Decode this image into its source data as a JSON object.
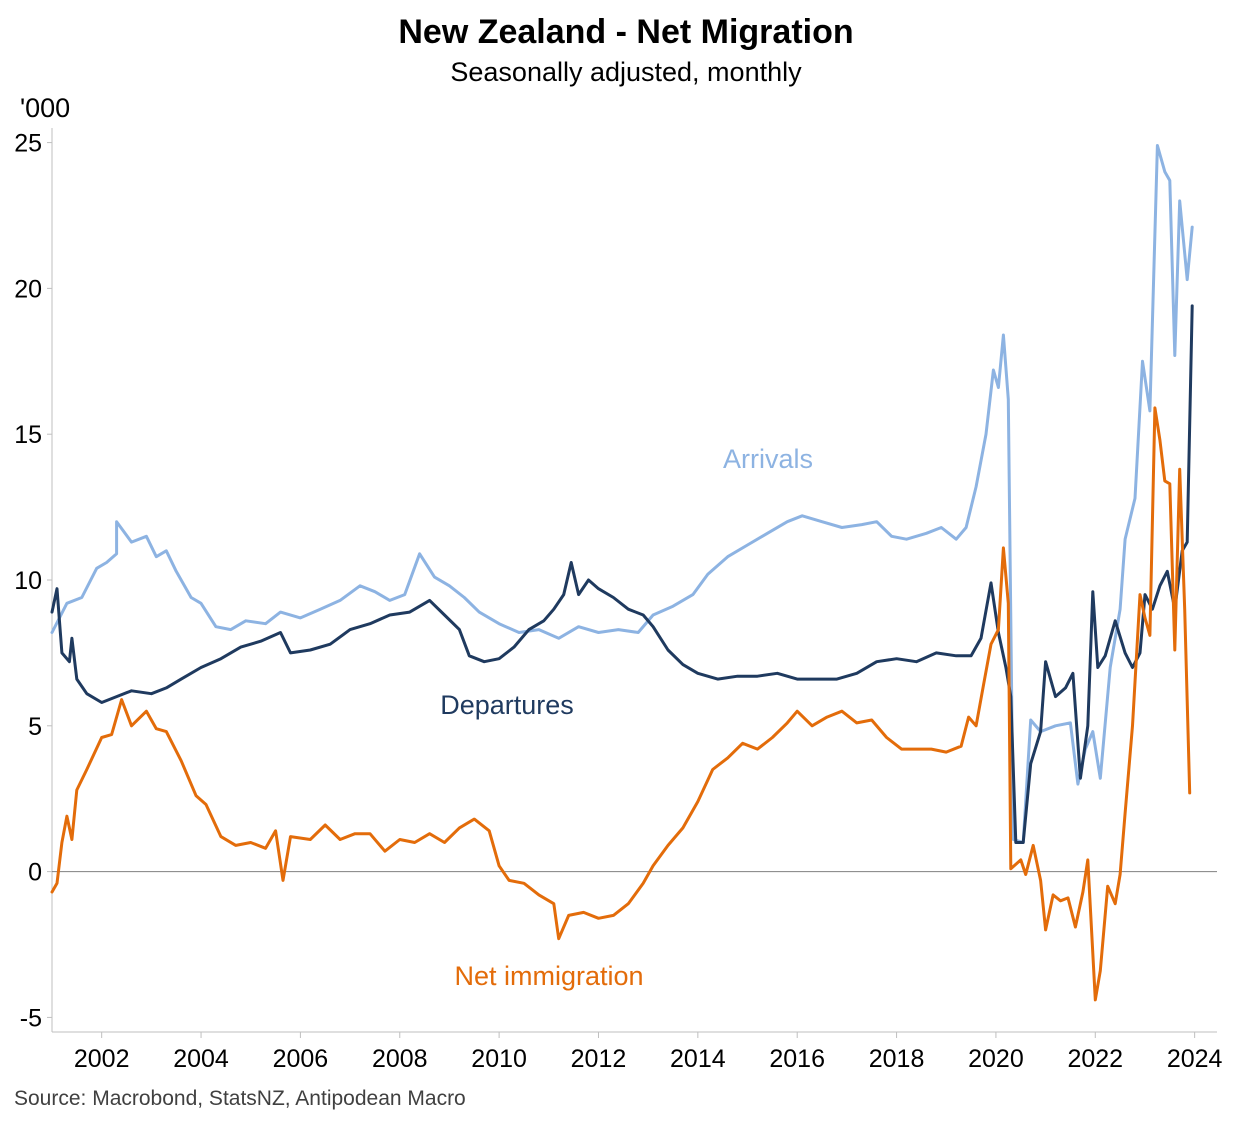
{
  "chart_data": {
    "type": "line",
    "title": "New Zealand - Net Migration",
    "subtitle": "Seasonally adjusted, monthly",
    "ylabel": "'000",
    "xlabel": "",
    "source": "Source: Macrobond, StatsNZ, Antipodean Macro",
    "ylim": [
      -5.5,
      25.5
    ],
    "xlim": [
      2001.0,
      2024.45
    ],
    "y_ticks": [
      "25",
      "20",
      "15",
      "10",
      "5",
      "0",
      "-5"
    ],
    "y_tick_values": [
      25,
      20,
      15,
      10,
      5,
      0,
      -5
    ],
    "x_ticks": [
      "2002",
      "2004",
      "2006",
      "2008",
      "2010",
      "2012",
      "2014",
      "2016",
      "2018",
      "2020",
      "2022",
      "2024"
    ],
    "x_tick_values": [
      2002,
      2004,
      2006,
      2008,
      2010,
      2012,
      2014,
      2016,
      2018,
      2020,
      2022,
      2024
    ],
    "zero_line": true,
    "colors": {
      "arrivals": "#8db3e2",
      "departures": "#1f3a5f",
      "net": "#e36c0a",
      "zero": "#808080",
      "axis": "#bfbfbf"
    },
    "series": [
      {
        "name": "Arrivals",
        "label": "Arrivals",
        "color": "#8db3e2",
        "points": [
          [
            2001.0,
            8.2
          ],
          [
            2001.3,
            9.2
          ],
          [
            2001.6,
            9.4
          ],
          [
            2001.9,
            10.4
          ],
          [
            2002.1,
            10.6
          ],
          [
            2002.3,
            10.9
          ],
          [
            2002.3,
            12.0
          ],
          [
            2002.6,
            11.3
          ],
          [
            2002.9,
            11.5
          ],
          [
            2003.1,
            10.8
          ],
          [
            2003.3,
            11.0
          ],
          [
            2003.5,
            10.3
          ],
          [
            2003.8,
            9.4
          ],
          [
            2004.0,
            9.2
          ],
          [
            2004.3,
            8.4
          ],
          [
            2004.6,
            8.3
          ],
          [
            2004.9,
            8.6
          ],
          [
            2005.3,
            8.5
          ],
          [
            2005.6,
            8.9
          ],
          [
            2006.0,
            8.7
          ],
          [
            2006.4,
            9.0
          ],
          [
            2006.8,
            9.3
          ],
          [
            2007.2,
            9.8
          ],
          [
            2007.5,
            9.6
          ],
          [
            2007.8,
            9.3
          ],
          [
            2008.1,
            9.5
          ],
          [
            2008.4,
            10.9
          ],
          [
            2008.7,
            10.1
          ],
          [
            2009.0,
            9.8
          ],
          [
            2009.3,
            9.4
          ],
          [
            2009.6,
            8.9
          ],
          [
            2010.0,
            8.5
          ],
          [
            2010.4,
            8.2
          ],
          [
            2010.8,
            8.3
          ],
          [
            2011.2,
            8.0
          ],
          [
            2011.6,
            8.4
          ],
          [
            2012.0,
            8.2
          ],
          [
            2012.4,
            8.3
          ],
          [
            2012.8,
            8.2
          ],
          [
            2013.1,
            8.8
          ],
          [
            2013.5,
            9.1
          ],
          [
            2013.9,
            9.5
          ],
          [
            2014.2,
            10.2
          ],
          [
            2014.6,
            10.8
          ],
          [
            2015.0,
            11.2
          ],
          [
            2015.4,
            11.6
          ],
          [
            2015.8,
            12.0
          ],
          [
            2016.1,
            12.2
          ],
          [
            2016.5,
            12.0
          ],
          [
            2016.9,
            11.8
          ],
          [
            2017.3,
            11.9
          ],
          [
            2017.6,
            12.0
          ],
          [
            2017.9,
            11.5
          ],
          [
            2018.2,
            11.4
          ],
          [
            2018.6,
            11.6
          ],
          [
            2018.9,
            11.8
          ],
          [
            2019.2,
            11.4
          ],
          [
            2019.4,
            11.8
          ],
          [
            2019.6,
            13.2
          ],
          [
            2019.8,
            15.0
          ],
          [
            2019.95,
            17.2
          ],
          [
            2020.05,
            16.6
          ],
          [
            2020.15,
            18.4
          ],
          [
            2020.25,
            16.2
          ],
          [
            2020.35,
            1.1
          ],
          [
            2020.55,
            1.0
          ],
          [
            2020.7,
            5.2
          ],
          [
            2020.9,
            4.8
          ],
          [
            2021.2,
            5.0
          ],
          [
            2021.5,
            5.1
          ],
          [
            2021.65,
            3.0
          ],
          [
            2021.8,
            4.2
          ],
          [
            2021.95,
            4.8
          ],
          [
            2022.1,
            3.2
          ],
          [
            2022.3,
            7.0
          ],
          [
            2022.5,
            9.0
          ],
          [
            2022.6,
            11.4
          ],
          [
            2022.8,
            12.8
          ],
          [
            2022.95,
            17.5
          ],
          [
            2023.1,
            15.8
          ],
          [
            2023.25,
            24.9
          ],
          [
            2023.4,
            24.0
          ],
          [
            2023.5,
            23.7
          ],
          [
            2023.6,
            17.7
          ],
          [
            2023.7,
            23.0
          ],
          [
            2023.85,
            20.3
          ],
          [
            2023.95,
            22.1
          ]
        ]
      },
      {
        "name": "Departures",
        "label": "Departures",
        "color": "#1f3a5f",
        "points": [
          [
            2001.0,
            8.9
          ],
          [
            2001.1,
            9.7
          ],
          [
            2001.2,
            7.5
          ],
          [
            2001.35,
            7.2
          ],
          [
            2001.4,
            8.0
          ],
          [
            2001.5,
            6.6
          ],
          [
            2001.7,
            6.1
          ],
          [
            2002.0,
            5.8
          ],
          [
            2002.3,
            6.0
          ],
          [
            2002.6,
            6.2
          ],
          [
            2003.0,
            6.1
          ],
          [
            2003.3,
            6.3
          ],
          [
            2003.6,
            6.6
          ],
          [
            2004.0,
            7.0
          ],
          [
            2004.4,
            7.3
          ],
          [
            2004.8,
            7.7
          ],
          [
            2005.2,
            7.9
          ],
          [
            2005.6,
            8.2
          ],
          [
            2005.8,
            7.5
          ],
          [
            2006.2,
            7.6
          ],
          [
            2006.6,
            7.8
          ],
          [
            2007.0,
            8.3
          ],
          [
            2007.4,
            8.5
          ],
          [
            2007.8,
            8.8
          ],
          [
            2008.2,
            8.9
          ],
          [
            2008.6,
            9.3
          ],
          [
            2008.9,
            8.8
          ],
          [
            2009.2,
            8.3
          ],
          [
            2009.4,
            7.4
          ],
          [
            2009.7,
            7.2
          ],
          [
            2010.0,
            7.3
          ],
          [
            2010.3,
            7.7
          ],
          [
            2010.6,
            8.3
          ],
          [
            2010.9,
            8.6
          ],
          [
            2011.1,
            9.0
          ],
          [
            2011.3,
            9.5
          ],
          [
            2011.45,
            10.6
          ],
          [
            2011.6,
            9.5
          ],
          [
            2011.8,
            10.0
          ],
          [
            2012.0,
            9.7
          ],
          [
            2012.3,
            9.4
          ],
          [
            2012.6,
            9.0
          ],
          [
            2012.9,
            8.8
          ],
          [
            2013.1,
            8.4
          ],
          [
            2013.4,
            7.6
          ],
          [
            2013.7,
            7.1
          ],
          [
            2014.0,
            6.8
          ],
          [
            2014.4,
            6.6
          ],
          [
            2014.8,
            6.7
          ],
          [
            2015.2,
            6.7
          ],
          [
            2015.6,
            6.8
          ],
          [
            2016.0,
            6.6
          ],
          [
            2016.4,
            6.6
          ],
          [
            2016.8,
            6.6
          ],
          [
            2017.2,
            6.8
          ],
          [
            2017.6,
            7.2
          ],
          [
            2018.0,
            7.3
          ],
          [
            2018.4,
            7.2
          ],
          [
            2018.8,
            7.5
          ],
          [
            2019.2,
            7.4
          ],
          [
            2019.5,
            7.4
          ],
          [
            2019.7,
            8.0
          ],
          [
            2019.9,
            9.9
          ],
          [
            2020.05,
            8.2
          ],
          [
            2020.2,
            7.0
          ],
          [
            2020.3,
            6.0
          ],
          [
            2020.4,
            1.0
          ],
          [
            2020.55,
            1.0
          ],
          [
            2020.7,
            3.7
          ],
          [
            2020.9,
            4.8
          ],
          [
            2021.0,
            7.2
          ],
          [
            2021.2,
            6.0
          ],
          [
            2021.4,
            6.3
          ],
          [
            2021.55,
            6.8
          ],
          [
            2021.7,
            3.2
          ],
          [
            2021.85,
            5.0
          ],
          [
            2021.95,
            9.6
          ],
          [
            2022.05,
            7.0
          ],
          [
            2022.2,
            7.4
          ],
          [
            2022.4,
            8.6
          ],
          [
            2022.6,
            7.5
          ],
          [
            2022.75,
            7.0
          ],
          [
            2022.9,
            7.5
          ],
          [
            2023.0,
            9.5
          ],
          [
            2023.15,
            9.0
          ],
          [
            2023.3,
            9.8
          ],
          [
            2023.45,
            10.3
          ],
          [
            2023.6,
            9.0
          ],
          [
            2023.75,
            11.0
          ],
          [
            2023.85,
            11.3
          ],
          [
            2023.95,
            19.4
          ]
        ]
      },
      {
        "name": "Net immigration",
        "label": "Net immigration",
        "color": "#e36c0a",
        "points": [
          [
            2001.0,
            -0.7
          ],
          [
            2001.1,
            -0.4
          ],
          [
            2001.2,
            1.0
          ],
          [
            2001.3,
            1.9
          ],
          [
            2001.4,
            1.1
          ],
          [
            2001.5,
            2.8
          ],
          [
            2001.7,
            3.5
          ],
          [
            2002.0,
            4.6
          ],
          [
            2002.2,
            4.7
          ],
          [
            2002.4,
            5.9
          ],
          [
            2002.6,
            5.0
          ],
          [
            2002.9,
            5.5
          ],
          [
            2003.1,
            4.9
          ],
          [
            2003.3,
            4.8
          ],
          [
            2003.6,
            3.8
          ],
          [
            2003.9,
            2.6
          ],
          [
            2004.1,
            2.3
          ],
          [
            2004.4,
            1.2
          ],
          [
            2004.7,
            0.9
          ],
          [
            2005.0,
            1.0
          ],
          [
            2005.3,
            0.8
          ],
          [
            2005.5,
            1.4
          ],
          [
            2005.65,
            -0.3
          ],
          [
            2005.8,
            1.2
          ],
          [
            2006.2,
            1.1
          ],
          [
            2006.5,
            1.6
          ],
          [
            2006.8,
            1.1
          ],
          [
            2007.1,
            1.3
          ],
          [
            2007.4,
            1.3
          ],
          [
            2007.7,
            0.7
          ],
          [
            2008.0,
            1.1
          ],
          [
            2008.3,
            1.0
          ],
          [
            2008.6,
            1.3
          ],
          [
            2008.9,
            1.0
          ],
          [
            2009.2,
            1.5
          ],
          [
            2009.5,
            1.8
          ],
          [
            2009.8,
            1.4
          ],
          [
            2010.0,
            0.2
          ],
          [
            2010.2,
            -0.3
          ],
          [
            2010.5,
            -0.4
          ],
          [
            2010.8,
            -0.8
          ],
          [
            2011.1,
            -1.1
          ],
          [
            2011.2,
            -2.3
          ],
          [
            2011.4,
            -1.5
          ],
          [
            2011.7,
            -1.4
          ],
          [
            2012.0,
            -1.6
          ],
          [
            2012.3,
            -1.5
          ],
          [
            2012.6,
            -1.1
          ],
          [
            2012.9,
            -0.4
          ],
          [
            2013.1,
            0.2
          ],
          [
            2013.4,
            0.9
          ],
          [
            2013.7,
            1.5
          ],
          [
            2014.0,
            2.4
          ],
          [
            2014.3,
            3.5
          ],
          [
            2014.6,
            3.9
          ],
          [
            2014.9,
            4.4
          ],
          [
            2015.2,
            4.2
          ],
          [
            2015.5,
            4.6
          ],
          [
            2015.8,
            5.1
          ],
          [
            2016.0,
            5.5
          ],
          [
            2016.3,
            5.0
          ],
          [
            2016.6,
            5.3
          ],
          [
            2016.9,
            5.5
          ],
          [
            2017.2,
            5.1
          ],
          [
            2017.5,
            5.2
          ],
          [
            2017.8,
            4.6
          ],
          [
            2018.1,
            4.2
          ],
          [
            2018.4,
            4.2
          ],
          [
            2018.7,
            4.2
          ],
          [
            2019.0,
            4.1
          ],
          [
            2019.3,
            4.3
          ],
          [
            2019.45,
            5.3
          ],
          [
            2019.6,
            5.0
          ],
          [
            2019.75,
            6.4
          ],
          [
            2019.9,
            7.8
          ],
          [
            2020.05,
            8.3
          ],
          [
            2020.15,
            11.1
          ],
          [
            2020.25,
            9.2
          ],
          [
            2020.3,
            0.1
          ],
          [
            2020.5,
            0.4
          ],
          [
            2020.6,
            -0.1
          ],
          [
            2020.75,
            0.9
          ],
          [
            2020.9,
            -0.3
          ],
          [
            2021.0,
            -2.0
          ],
          [
            2021.15,
            -0.8
          ],
          [
            2021.3,
            -1.0
          ],
          [
            2021.45,
            -0.9
          ],
          [
            2021.6,
            -1.9
          ],
          [
            2021.75,
            -0.7
          ],
          [
            2021.85,
            0.4
          ],
          [
            2022.0,
            -4.4
          ],
          [
            2022.1,
            -3.4
          ],
          [
            2022.25,
            -0.5
          ],
          [
            2022.4,
            -1.1
          ],
          [
            2022.5,
            -0.1
          ],
          [
            2022.6,
            2.0
          ],
          [
            2022.75,
            5.0
          ],
          [
            2022.9,
            9.5
          ],
          [
            2023.0,
            8.7
          ],
          [
            2023.1,
            8.1
          ],
          [
            2023.2,
            15.9
          ],
          [
            2023.3,
            14.8
          ],
          [
            2023.4,
            13.4
          ],
          [
            2023.5,
            13.3
          ],
          [
            2023.6,
            7.6
          ],
          [
            2023.7,
            13.8
          ],
          [
            2023.8,
            9.0
          ],
          [
            2023.9,
            2.7
          ]
        ]
      }
    ],
    "series_label_positions": {
      "Arrivals": "center-right",
      "Departures": "center",
      "Net immigration": "bottom-center"
    }
  }
}
